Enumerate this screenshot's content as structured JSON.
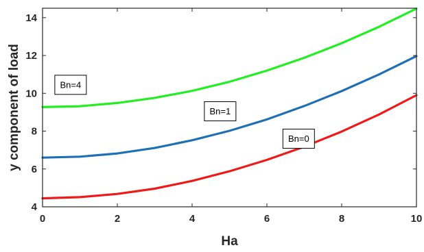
{
  "chart_data": {
    "type": "line",
    "xlabel": "Ha",
    "ylabel": "y component of load",
    "xlim": [
      0,
      10
    ],
    "ylim": [
      4,
      14.5
    ],
    "xticks": [
      0,
      2,
      4,
      6,
      8,
      10
    ],
    "yticks": [
      4,
      6,
      8,
      10,
      12,
      14
    ],
    "grid": false,
    "x": [
      0,
      1,
      2,
      3,
      4,
      5,
      6,
      7,
      8,
      9,
      10
    ],
    "series": [
      {
        "name": "Bn=4",
        "color": "#22ee22",
        "values": [
          9.27,
          9.32,
          9.49,
          9.76,
          10.13,
          10.61,
          11.2,
          11.88,
          12.65,
          13.52,
          14.48
        ]
      },
      {
        "name": "Bn=1",
        "color": "#1f6fb4",
        "values": [
          6.6,
          6.65,
          6.82,
          7.11,
          7.52,
          8.02,
          8.62,
          9.33,
          10.12,
          11.0,
          11.97
        ]
      },
      {
        "name": "Bn=0",
        "color": "#ee1a1a",
        "values": [
          4.45,
          4.51,
          4.68,
          4.96,
          5.37,
          5.88,
          6.48,
          7.18,
          7.98,
          8.88,
          9.9
        ]
      }
    ],
    "annotations": [
      {
        "text": "Bn=4",
        "x": 0.75,
        "y": 10.45
      },
      {
        "text": "Bn=1",
        "x": 4.75,
        "y": 9.05
      },
      {
        "text": "Bn=0",
        "x": 6.85,
        "y": 7.6
      }
    ]
  }
}
